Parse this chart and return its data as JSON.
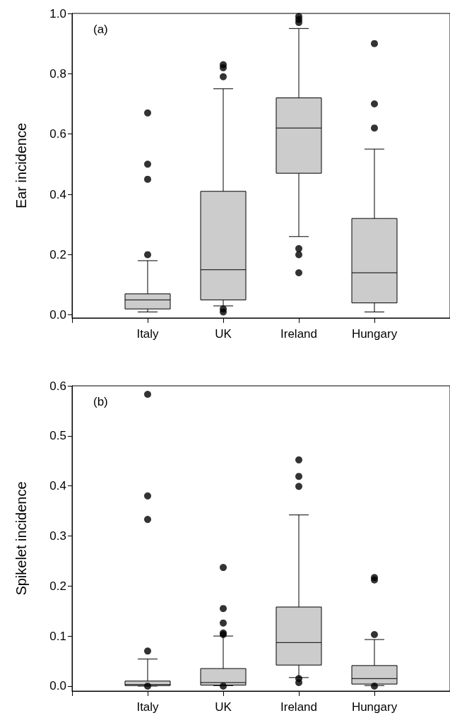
{
  "chart_data": [
    {
      "type": "box",
      "ylabel": "Ear incidence",
      "annotations": [
        "(a)"
      ],
      "categories": [
        "Italy",
        "UK",
        "Ireland",
        "Hungary"
      ],
      "ylim": [
        -0.01,
        1.0
      ],
      "yticks": [
        {
          "value": 0,
          "label": "0.0"
        },
        {
          "value": 0.2,
          "label": "0.2"
        },
        {
          "value": 0.4,
          "label": "0.4"
        },
        {
          "value": 0.6,
          "label": "0.6"
        },
        {
          "value": 0.8,
          "label": "0.8"
        },
        {
          "value": 1.0,
          "label": "1.0"
        }
      ],
      "series": [
        {
          "color": "#cccccc",
          "boxes": [
            {
              "low": 0.01,
              "q1": 0.02,
              "median": 0.05,
              "q3": 0.07,
              "high": 0.18,
              "outliers": [
                0.67,
                0.5,
                0.45,
                0.2
              ]
            },
            {
              "low": 0.03,
              "q1": 0.05,
              "median": 0.15,
              "q3": 0.41,
              "high": 0.75,
              "outliers": [
                0.83,
                0.82,
                0.79,
                0.02,
                0.01
              ]
            },
            {
              "low": 0.26,
              "q1": 0.47,
              "median": 0.62,
              "q3": 0.72,
              "high": 0.95,
              "outliers": [
                0.99,
                0.98,
                0.97,
                0.22,
                0.2,
                0.14
              ]
            },
            {
              "low": 0.01,
              "q1": 0.04,
              "median": 0.14,
              "q3": 0.32,
              "high": 0.55,
              "outliers": [
                0.9,
                0.7,
                0.62
              ]
            }
          ]
        }
      ]
    },
    {
      "type": "box",
      "ylabel": "Spikelet incidence",
      "annotations": [
        "(b)"
      ],
      "categories": [
        "Italy",
        "UK",
        "Ireland",
        "Hungary"
      ],
      "ylim": [
        -0.01,
        0.6
      ],
      "yticks": [
        {
          "value": 0,
          "label": "0.0"
        },
        {
          "value": 0.1,
          "label": "0.1"
        },
        {
          "value": 0.2,
          "label": "0.2"
        },
        {
          "value": 0.3,
          "label": "0.3"
        },
        {
          "value": 0.4,
          "label": "0.4"
        },
        {
          "value": 0.5,
          "label": "0.5"
        },
        {
          "value": 0.6,
          "label": "0.6"
        }
      ],
      "series": [
        {
          "color": "#cccccc",
          "boxes": [
            {
              "low": 0,
              "q1": 0.001,
              "median": 0.003,
              "q3": 0.01,
              "high": 0.054,
              "outliers": [
                0.583,
                0.38,
                0.333,
                0.07,
                0
              ]
            },
            {
              "low": 0.001,
              "q1": 0.002,
              "median": 0.007,
              "q3": 0.035,
              "high": 0.1,
              "outliers": [
                0.237,
                0.155,
                0.126,
                0.106,
                0.103,
                0
              ]
            },
            {
              "low": 0.017,
              "q1": 0.042,
              "median": 0.087,
              "q3": 0.158,
              "high": 0.342,
              "outliers": [
                0.452,
                0.419,
                0.399,
                0.015,
                0.007
              ]
            },
            {
              "low": 0.001,
              "q1": 0.004,
              "median": 0.015,
              "q3": 0.041,
              "high": 0.093,
              "outliers": [
                0.217,
                0.212,
                0.103,
                0
              ]
            }
          ]
        }
      ]
    }
  ]
}
